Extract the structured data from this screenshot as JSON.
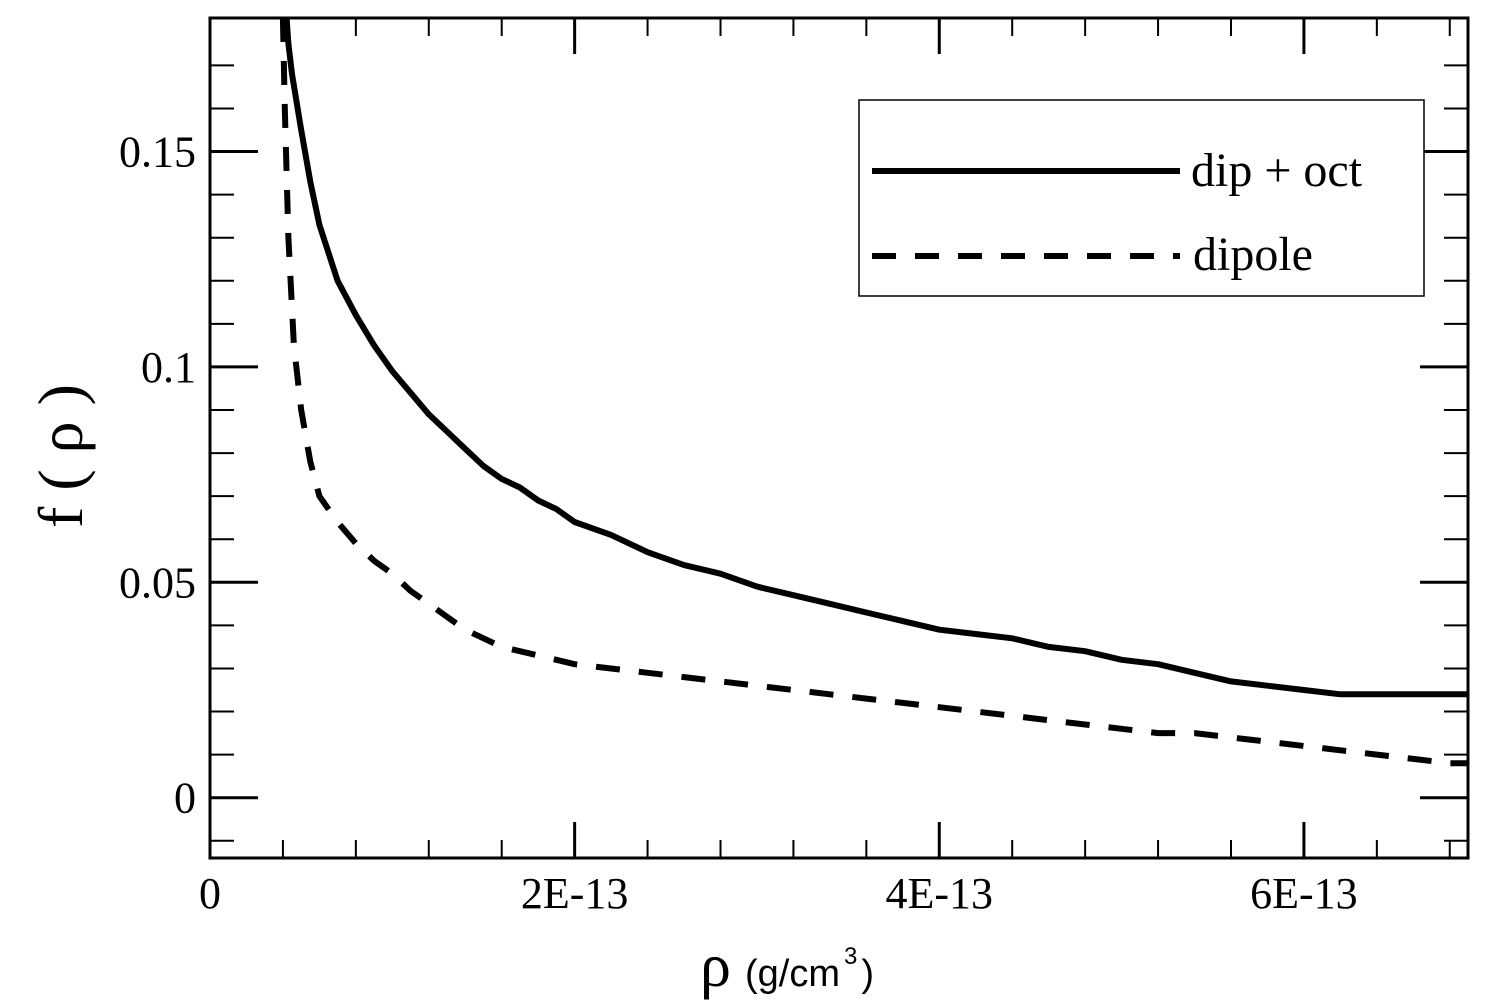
{
  "chart_data": {
    "type": "line",
    "xlabel": {
      "symbol": "ρ",
      "unit_main": "(g/cm",
      "unit_sup": "3",
      "unit_close": ")"
    },
    "ylabel": "f ( ρ )",
    "xlim": [
      0,
      6.9e-13
    ],
    "ylim": [
      -0.014,
      0.181
    ],
    "x_ticks": [
      {
        "value": 0,
        "label": "0"
      },
      {
        "value": 2e-13,
        "label": "2E-13"
      },
      {
        "value": 4e-13,
        "label": "4E-13"
      },
      {
        "value": 6e-13,
        "label": "6E-13"
      }
    ],
    "x_minor_ticks": [
      4e-14,
      8e-14,
      1.2e-13,
      1.6e-13,
      2.4e-13,
      2.8e-13,
      3.2e-13,
      3.6e-13,
      4.4e-13,
      4.8e-13,
      5.2e-13,
      5.6e-13,
      6.4e-13,
      6.8e-13
    ],
    "y_ticks": [
      {
        "value": 0,
        "label": "0"
      },
      {
        "value": 0.05,
        "label": "0.05"
      },
      {
        "value": 0.1,
        "label": "0.1"
      },
      {
        "value": 0.15,
        "label": "0.15"
      }
    ],
    "y_minor_ticks": [
      -0.01,
      0.01,
      0.02,
      0.03,
      0.04,
      0.06,
      0.07,
      0.08,
      0.09,
      0.11,
      0.12,
      0.13,
      0.14,
      0.16,
      0.17
    ],
    "grid": false,
    "legend_position": "top-right",
    "series": [
      {
        "name": "dip + oct",
        "style": "solid",
        "color": "#000000",
        "x": [
          4.2e-14,
          4.3e-14,
          4.5e-14,
          5e-14,
          5.5e-14,
          6e-14,
          7e-14,
          8e-14,
          9e-14,
          1e-13,
          1.1e-13,
          1.2e-13,
          1.3e-13,
          1.4e-13,
          1.5e-13,
          1.6e-13,
          1.7e-13,
          1.8e-13,
          1.9e-13,
          2e-13,
          2.2e-13,
          2.4e-13,
          2.6e-13,
          2.8e-13,
          3e-13,
          3.2e-13,
          3.4e-13,
          3.6e-13,
          3.8e-13,
          4e-13,
          4.2e-13,
          4.4e-13,
          4.6e-13,
          4.8e-13,
          5e-13,
          5.2e-13,
          5.4e-13,
          5.6e-13,
          5.8e-13,
          6e-13,
          6.2e-13,
          6.4e-13,
          6.6e-13,
          6.8e-13,
          6.9e-13
        ],
        "y": [
          0.181,
          0.175,
          0.168,
          0.155,
          0.143,
          0.133,
          0.12,
          0.112,
          0.105,
          0.099,
          0.094,
          0.089,
          0.085,
          0.081,
          0.077,
          0.074,
          0.072,
          0.069,
          0.067,
          0.064,
          0.061,
          0.057,
          0.054,
          0.052,
          0.049,
          0.047,
          0.045,
          0.043,
          0.041,
          0.039,
          0.038,
          0.037,
          0.035,
          0.034,
          0.032,
          0.031,
          0.029,
          0.027,
          0.026,
          0.025,
          0.024,
          0.024,
          0.024,
          0.024,
          0.024
        ]
      },
      {
        "name": "dipole",
        "style": "dashed",
        "color": "#000000",
        "x": [
          4e-14,
          4.1e-14,
          4.3e-14,
          4.6e-14,
          5e-14,
          5.5e-14,
          6e-14,
          7e-14,
          8e-14,
          9e-14,
          1e-13,
          1.1e-13,
          1.2e-13,
          1.3e-13,
          1.4e-13,
          1.5e-13,
          1.6e-13,
          1.7e-13,
          1.8e-13,
          1.9e-13,
          2e-13,
          2.2e-13,
          2.4e-13,
          2.6e-13,
          2.8e-13,
          3e-13,
          3.2e-13,
          3.4e-13,
          3.6e-13,
          3.8e-13,
          4e-13,
          4.2e-13,
          4.4e-13,
          4.6e-13,
          4.8e-13,
          5e-13,
          5.2e-13,
          5.4e-13,
          5.6e-13,
          5.8e-13,
          6e-13,
          6.2e-13,
          6.4e-13,
          6.6e-13,
          6.8e-13,
          6.9e-13
        ],
        "y": [
          0.181,
          0.16,
          0.13,
          0.105,
          0.09,
          0.078,
          0.07,
          0.064,
          0.059,
          0.055,
          0.052,
          0.048,
          0.045,
          0.042,
          0.039,
          0.037,
          0.035,
          0.034,
          0.033,
          0.032,
          0.031,
          0.03,
          0.029,
          0.028,
          0.027,
          0.026,
          0.025,
          0.024,
          0.023,
          0.022,
          0.021,
          0.02,
          0.019,
          0.018,
          0.017,
          0.016,
          0.015,
          0.015,
          0.014,
          0.013,
          0.012,
          0.011,
          0.01,
          0.009,
          0.008,
          0.008
        ]
      }
    ]
  }
}
